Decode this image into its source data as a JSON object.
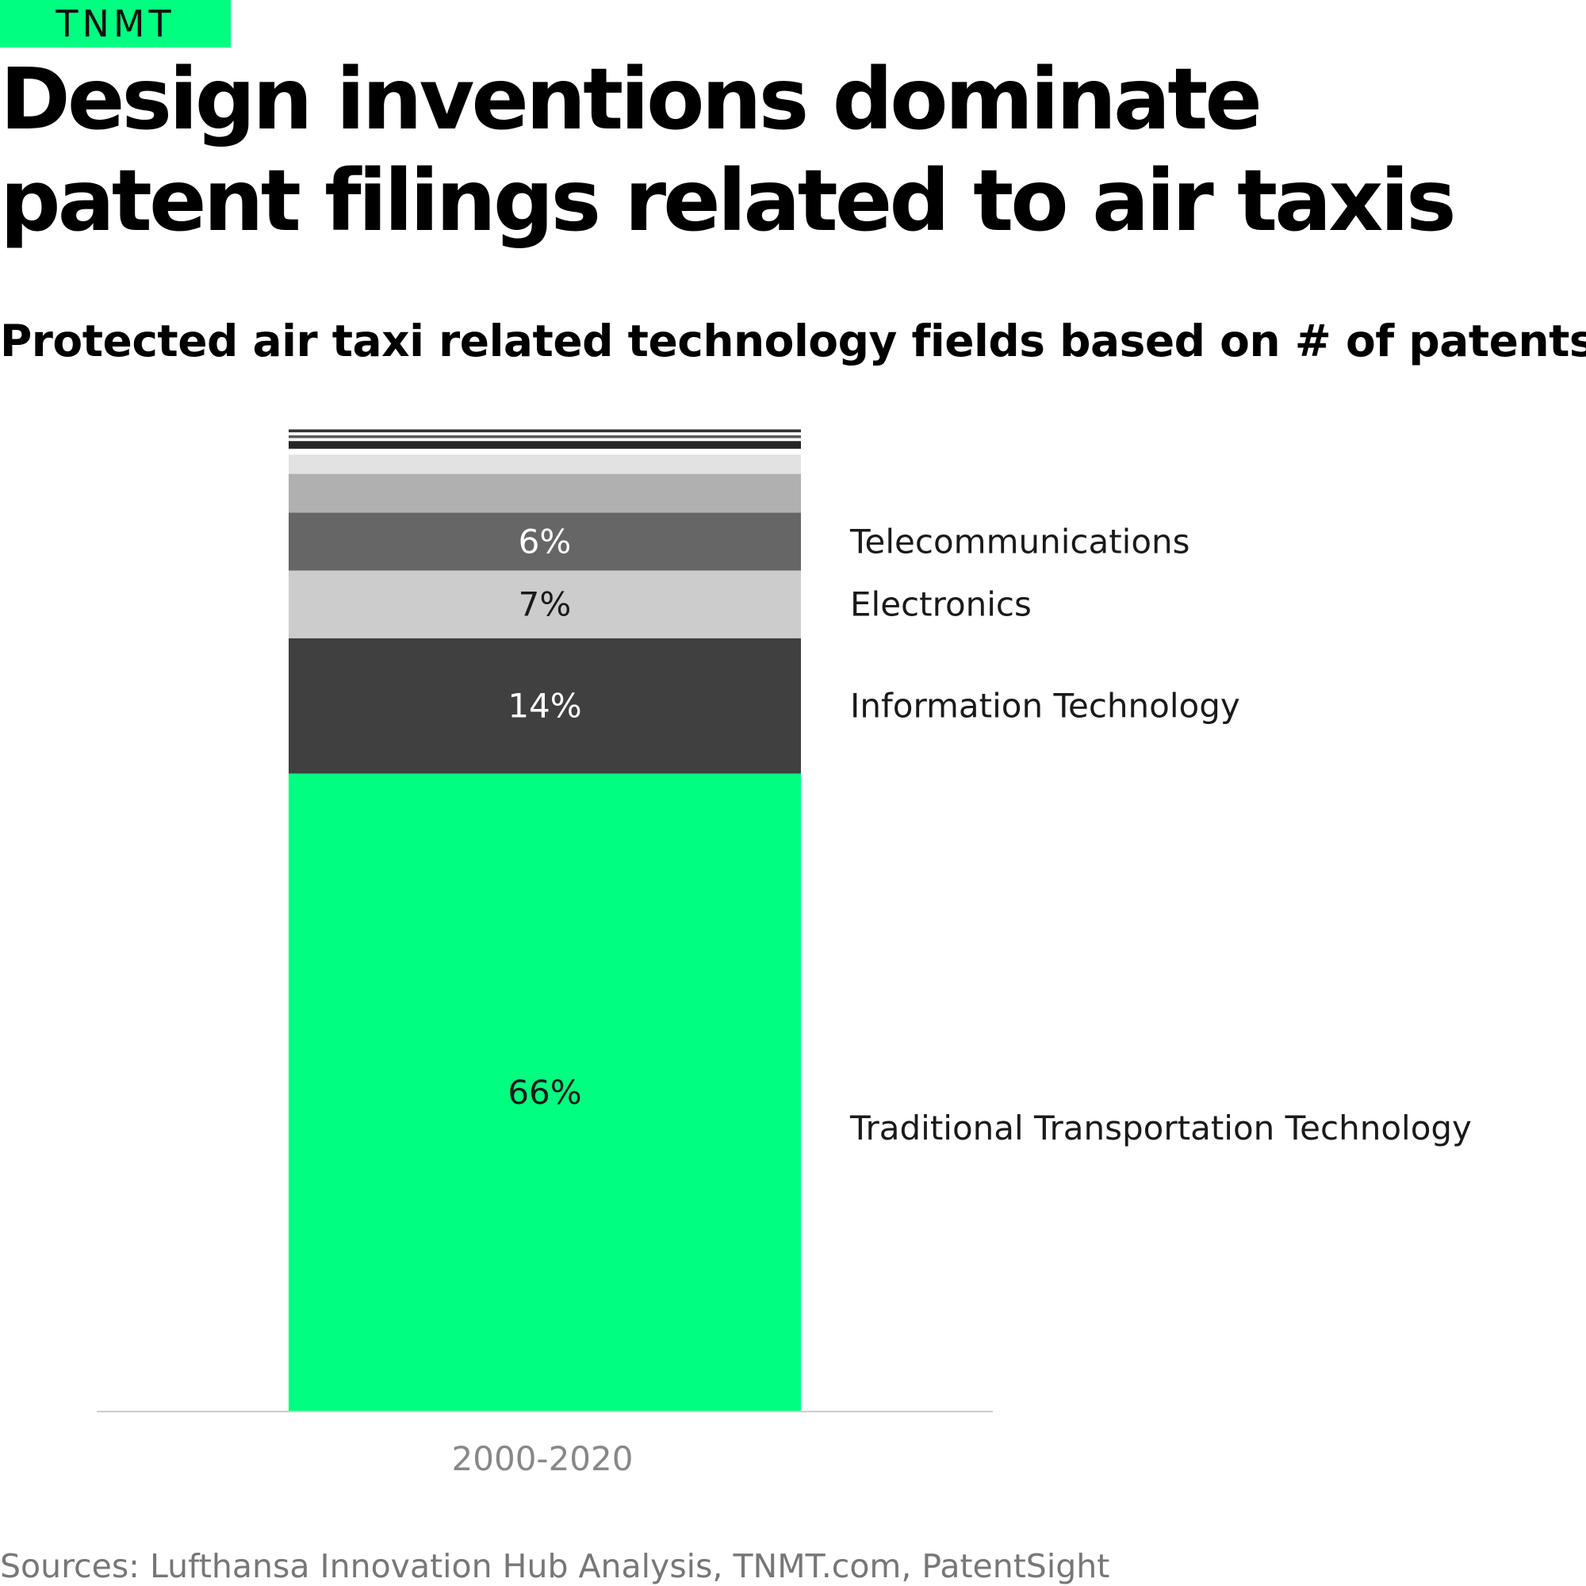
{
  "brand": {
    "logo_text": "TNMT",
    "color": "#00ff80"
  },
  "title": "Design inventions dominate patent filings related to air taxis",
  "subtitle": "Protected air taxi related technology fields based on # of patents",
  "source": "Sources: Lufthansa Innovation Hub Analysis, TNMT.com, PatentSight",
  "chart_data": {
    "type": "bar",
    "stacked": true,
    "categories": [
      "2000-2020"
    ],
    "ylim": [
      0,
      100
    ],
    "grid": false,
    "series": [
      {
        "name": "Traditional Transportation Technology",
        "value": 66,
        "label": "66%",
        "color": "#00ff80",
        "label_color": "#1a1a1a"
      },
      {
        "name": "Information Technology",
        "value": 14,
        "label": "14%",
        "color": "#404040",
        "label_color": "#ffffff"
      },
      {
        "name": "Electronics",
        "value": 7,
        "label": "7%",
        "color": "#cccccc",
        "label_color": "#1a1a1a"
      },
      {
        "name": "Telecommunications",
        "value": 6,
        "label": "6%",
        "color": "#666666",
        "label_color": "#ffffff"
      },
      {
        "name": "",
        "value": 4,
        "label": "",
        "color": "#b0b0b0",
        "label_color": ""
      },
      {
        "name": "",
        "value": 2,
        "label": "",
        "color": "#e2e2e2",
        "label_color": ""
      },
      {
        "name": "",
        "value": 0.6,
        "label": "",
        "color": "#ffffff",
        "label_color": ""
      },
      {
        "name": "",
        "value": 0.8,
        "label": "",
        "color": "#262626",
        "label_color": ""
      },
      {
        "name": "",
        "value": 0.3,
        "label": "",
        "color": "#ffffff",
        "label_color": ""
      },
      {
        "name": "",
        "value": 0.3,
        "label": "",
        "color": "#595959",
        "label_color": ""
      },
      {
        "name": "",
        "value": 0.3,
        "label": "",
        "color": "#ffffff",
        "label_color": ""
      },
      {
        "name": "",
        "value": 0.3,
        "label": "",
        "color": "#333333",
        "label_color": ""
      }
    ],
    "axis_color": "#cccccc",
    "category_label_color": "#1a1a1a"
  }
}
